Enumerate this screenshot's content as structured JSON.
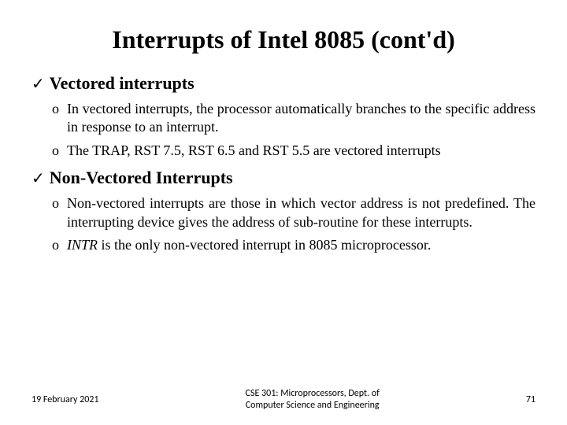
{
  "title": "Interrupts of Intel 8085 (cont'd)",
  "section1": {
    "heading": "Vectored interrupts",
    "items": [
      "In vectored interrupts, the processor automatically branches to the specific address in response to an interrupt.",
      "The TRAP, RST 7.5, RST 6.5 and RST 5.5 are vectored interrupts"
    ]
  },
  "section2": {
    "heading": "Non-Vectored Interrupts",
    "items": [
      "Non-vectored interrupts are those in which vector address is not predefined. The interrupting device gives the address of sub-routine for these interrupts."
    ],
    "item_intr_prefix": "INTR",
    "item_intr_rest": " is the only non-vectored interrupt in 8085 microprocessor."
  },
  "footer": {
    "date": "19 February 2021",
    "center_line1": "CSE 301: Microprocessors, Dept. of",
    "center_line2": "Computer Science and Engineering",
    "page": "71"
  },
  "markers": {
    "check": "✓",
    "bullet": "o"
  }
}
